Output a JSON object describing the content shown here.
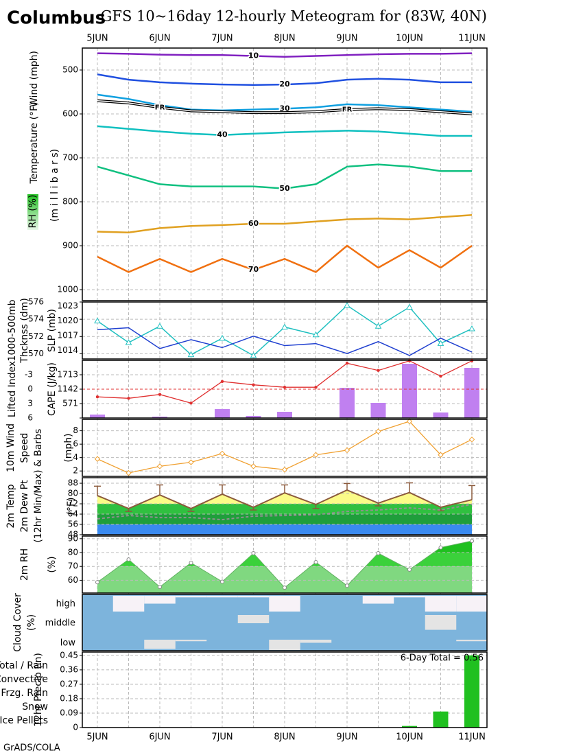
{
  "title": "Columbus",
  "subtitle": "GFS 10~16day 12-hourly Meteogram for (83W, 40N)",
  "footer": "GrADS/COLA",
  "categories": [
    "5JUN",
    null,
    "6JUN",
    null,
    "7JUN",
    null,
    "8JUN",
    null,
    "9JUN",
    null,
    "10JUN",
    null,
    "11JUN"
  ],
  "chart_data": [
    {
      "type": "isobaric",
      "axis_titles": [
        "Wind (mph)",
        "Temperature (°F)",
        "RH (%)",
        "(m i l l i b a r s)"
      ],
      "ylim": [
        1025,
        450
      ],
      "yticks": [
        500,
        600,
        700,
        800,
        900,
        1000
      ],
      "series": [
        {
          "name": "10",
          "color": "#8020c0",
          "values": [
            462,
            463,
            465,
            466,
            466,
            468,
            470,
            468,
            466,
            464,
            463,
            463,
            462
          ]
        },
        {
          "name": "20",
          "color": "#2050e0",
          "values": [
            510,
            522,
            528,
            531,
            533,
            534,
            533,
            530,
            522,
            520,
            522,
            528,
            528
          ]
        },
        {
          "name": "30",
          "color": "#10a0e0",
          "values": [
            556,
            566,
            580,
            590,
            592,
            590,
            588,
            585,
            578,
            580,
            585,
            590,
            595
          ]
        },
        {
          "name": "40",
          "color": "#10c0c0",
          "values": [
            628,
            634,
            640,
            645,
            648,
            645,
            642,
            640,
            638,
            640,
            645,
            650,
            650
          ]
        },
        {
          "name": "50",
          "color": "#10c080",
          "values": [
            720,
            740,
            760,
            765,
            765,
            765,
            770,
            760,
            720,
            715,
            720,
            730,
            730
          ]
        },
        {
          "name": "60",
          "color": "#e0a020",
          "values": [
            868,
            870,
            860,
            855,
            853,
            850,
            850,
            845,
            840,
            838,
            840,
            835,
            830
          ]
        },
        {
          "name": "70",
          "color": "#f07010",
          "values": [
            925,
            960,
            930,
            960,
            930,
            955,
            930,
            960,
            900,
            950,
            910,
            950,
            900
          ]
        },
        {
          "name": "FR",
          "color": "#000000",
          "values": [
            570,
            575,
            585,
            593,
            595,
            597,
            597,
            595,
            590,
            588,
            590,
            595,
            600
          ]
        }
      ]
    },
    {
      "type": "dual_line",
      "axis_titles": [
        "1000-500mb",
        "Thcknss (dm)",
        "SLP (mb)"
      ],
      "ylim": [
        569.4,
        576
      ],
      "yticks": [
        570,
        572,
        574,
        576
      ],
      "y2lim": [
        1012.3,
        1023.8
      ],
      "y2ticks": [
        1014,
        1017,
        1020,
        1023
      ],
      "series": [
        {
          "color": "#20c0c0",
          "marker": "triangle",
          "values": [
            573.8,
            571.3,
            573.2,
            569.9,
            571.8,
            569.8,
            573.1,
            572.2,
            575.6,
            573.2,
            575.4,
            571.2,
            572.9
          ]
        },
        {
          "color": "#2040d0",
          "axis": "y2",
          "values": [
            1018.2,
            1018.6,
            1014.4,
            1016.2,
            1014.6,
            1016.9,
            1015.0,
            1015.4,
            1013.4,
            1015.8,
            1013.0,
            1016.5,
            1013.7
          ]
        }
      ]
    },
    {
      "type": "bar_line",
      "axis_titles": [
        "Lifted Index",
        "CAPE (J/kg)"
      ],
      "ylim": [
        6,
        -6
      ],
      "yticks": [
        -3,
        0,
        3,
        6
      ],
      "y2lim": [
        0,
        2284
      ],
      "y2ticks": [
        571,
        1142,
        1713
      ],
      "series": [
        {
          "color": "#e03030",
          "values": [
            1.6,
            1.9,
            1.1,
            2.9,
            -1.6,
            -0.9,
            -0.4,
            -0.4,
            -5.4,
            -3.9,
            -5.9,
            -2.7,
            -5.9
          ]
        },
        {
          "color": "#c080f0",
          "axis": "y2",
          "kind": "bar",
          "values": [
            136,
            0,
            54,
            0,
            353,
            82,
            245,
            0,
            1196,
            598,
            2148,
            218,
            1985
          ]
        }
      ]
    },
    {
      "type": "line",
      "axis_titles": [
        "10m Wind",
        "Speed",
        "& Barbs",
        "(mph)"
      ],
      "ylim": [
        1.2,
        9.7
      ],
      "yticks": [
        2,
        4,
        6,
        8
      ],
      "color": "#f0a030",
      "values": [
        3.8,
        1.7,
        2.7,
        3.3,
        4.6,
        2.7,
        2.2,
        4.4,
        5.1,
        7.9,
        9.4,
        4.4,
        6.7
      ]
    },
    {
      "type": "temperature",
      "axis_titles": [
        "2m Temp",
        "2m Dew Pt",
        "(12hr Min/Max)",
        "(°F)"
      ],
      "ylim": [
        48,
        92.3
      ],
      "yticks": [
        48,
        56,
        64,
        72,
        80,
        88
      ],
      "series": [
        {
          "color": "#8b5a3c",
          "values": [
            78.4,
            68.3,
            78.9,
            68.3,
            79.5,
            69.3,
            80.5,
            71.5,
            82.7,
            72.5,
            80.8,
            69.3,
            75.2
          ],
          "extremes": [
            85.7,
            66.1,
            86.7,
            66.1,
            86.7,
            67.2,
            86.7,
            68.3,
            87.8,
            70.4,
            88.3,
            66.6,
            86.2
          ]
        },
        {
          "color": "#909090",
          "dashed": true,
          "values": [
            60.3,
            62.9,
            61.3,
            61.3,
            59.7,
            62.4,
            62.9,
            63.5,
            66.1,
            67.2,
            68.8,
            67.2,
            71.5
          ]
        }
      ]
    },
    {
      "type": "area",
      "axis_titles": [
        "2m RH",
        "(%)"
      ],
      "ylim": [
        50.8,
        91.9
      ],
      "yticks": [
        60,
        70,
        80,
        90
      ],
      "color": "#20c020",
      "values": [
        58.6,
        75.0,
        55.2,
        72.6,
        59.0,
        79.5,
        54.7,
        73.1,
        56.1,
        79.5,
        67.7,
        83.6,
        88.4
      ]
    },
    {
      "type": "cloud",
      "axis_titles": [
        "Cloud Cover",
        "(%)"
      ],
      "series": [
        {
          "name": "high",
          "values": [
            100,
            0,
            50,
            90,
            90,
            90,
            0,
            100,
            100,
            50,
            90,
            0,
            0
          ]
        },
        {
          "name": "middle",
          "values": [
            100,
            100,
            100,
            100,
            100,
            50,
            100,
            100,
            100,
            100,
            100,
            10,
            100
          ]
        },
        {
          "name": "low",
          "values": [
            100,
            100,
            10,
            85,
            100,
            100,
            0,
            70,
            100,
            100,
            100,
            100,
            85
          ]
        }
      ]
    },
    {
      "type": "bar",
      "axis_titles": [
        "12hr Precip (in)"
      ],
      "legend": [
        {
          "name": "Total / Rain",
          "color": "#20c020"
        },
        {
          "name": "Convective",
          "color": "#e02020"
        },
        {
          "name": "Frzg. Rain",
          "color": "#f08020"
        },
        {
          "name": "Snow",
          "color": "#4040e0"
        },
        {
          "name": "Ice Pellets",
          "color": "#20c0c0"
        }
      ],
      "annotation": "6-Day Total = 0.56",
      "ylim": [
        0,
        0.471
      ],
      "yticks": [
        0,
        0.09,
        0.18,
        0.27,
        0.36,
        0.45
      ],
      "color": "#20c020",
      "values": [
        0,
        0,
        0,
        0,
        0,
        0,
        0,
        0,
        0,
        0,
        0.01,
        0.1,
        0.45
      ]
    }
  ]
}
